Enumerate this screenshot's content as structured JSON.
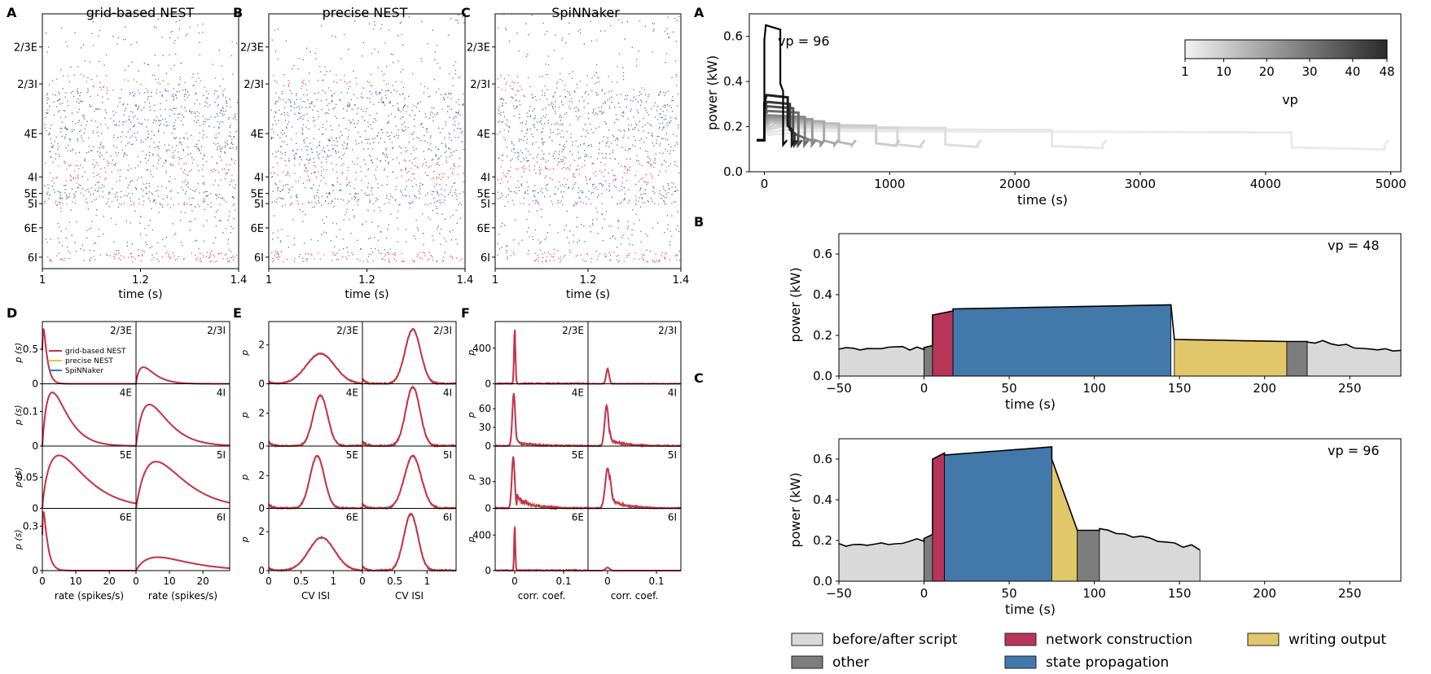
{
  "panel_letters": {
    "raster": [
      "A",
      "B",
      "C"
    ],
    "dist": [
      "D",
      "E",
      "F"
    ],
    "power": [
      "A",
      "B",
      "C"
    ]
  },
  "chart_data": [
    {
      "type": "scatter",
      "subtype": "raster",
      "titles": [
        "grid-based NEST",
        "precise NEST",
        "SpiNNaker"
      ],
      "xlabel": "time (s)",
      "xlim": [
        1.0,
        1.4
      ],
      "xticks": [
        1,
        1.2,
        1.4
      ],
      "xtick_labels": [
        "1",
        "1.2",
        "1.4"
      ],
      "populations": [
        {
          "label": "2/3E",
          "rows": [
            0.0,
            0.235
          ],
          "density": 0.09,
          "kind": "E"
        },
        {
          "label": "2/3I",
          "rows": [
            0.235,
            0.3
          ],
          "density": 0.26,
          "kind": "I"
        },
        {
          "label": "4E",
          "rows": [
            0.3,
            0.585
          ],
          "density": 0.55,
          "kind": "E"
        },
        {
          "label": "4I",
          "rows": [
            0.585,
            0.665
          ],
          "density": 0.48,
          "kind": "I"
        },
        {
          "label": "5E",
          "rows": [
            0.665,
            0.735
          ],
          "density": 0.62,
          "kind": "E"
        },
        {
          "label": "5I",
          "rows": [
            0.735,
            0.75
          ],
          "density": 0.85,
          "kind": "I"
        },
        {
          "label": "6E",
          "rows": [
            0.75,
            0.935
          ],
          "density": 0.18,
          "kind": "E"
        },
        {
          "label": "6I",
          "rows": [
            0.935,
            0.975
          ],
          "density": 0.7,
          "kind": "I"
        }
      ],
      "label_positions": [
        0.13,
        0.275,
        0.47,
        0.64,
        0.705,
        0.745,
        0.84,
        0.955
      ],
      "colors": {
        "E": "#4a4f9e",
        "I": "#d23a52"
      }
    },
    {
      "type": "line",
      "subtype": "small-multiples",
      "series_names": [
        "grid-based NEST",
        "precise NEST",
        "SpiNNaker"
      ],
      "series_colors": [
        "#c8324a",
        "#e8c53a",
        "#3a77b3"
      ],
      "columns": [
        {
          "letter": "D",
          "ylabel": "p (s)",
          "xlabel": "rate (spikes/s)",
          "xlim": [
            0,
            28
          ],
          "xticks": [
            0,
            10,
            20
          ],
          "xtick_labels": [
            "0",
            "10",
            "20"
          ],
          "curve": "rate",
          "rows": [
            {
              "ylim": [
                0,
                0.9
              ],
              "yticks": [
                0,
                0.5
              ],
              "ytick_labels": [
                "0",
                "0.5"
              ],
              "panels": [
                {
                  "label": "2/3E",
                  "peak": 0.8,
                  "mode": 0.3,
                  "scale": 0.9
                },
                {
                  "label": "2/3I",
                  "peak": 0.24,
                  "mode": 2.2,
                  "scale": 2.5
                }
              ]
            },
            {
              "ylim": [
                0,
                0.18
              ],
              "yticks": [
                0,
                0.1
              ],
              "ytick_labels": [
                "0",
                "0.1"
              ],
              "panels": [
                {
                  "label": "4E",
                  "peak": 0.155,
                  "mode": 3.0,
                  "scale": 3.2
                },
                {
                  "label": "4I",
                  "peak": 0.12,
                  "mode": 4.0,
                  "scale": 4.0
                }
              ]
            },
            {
              "ylim": [
                0,
                0.1
              ],
              "yticks": [
                0,
                0.05
              ],
              "ytick_labels": [
                "0",
                "0.05"
              ],
              "panels": [
                {
                  "label": "5E",
                  "peak": 0.085,
                  "mode": 5.0,
                  "scale": 6.0
                },
                {
                  "label": "5I",
                  "peak": 0.075,
                  "mode": 6.0,
                  "scale": 6.0
                }
              ]
            },
            {
              "ylim": [
                0,
                0.42
              ],
              "yticks": [
                0,
                0.3
              ],
              "ytick_labels": [
                "0",
                "0.3"
              ],
              "panels": [
                {
                  "label": "6E",
                  "peak": 0.4,
                  "mode": 0.3,
                  "scale": 1.0
                },
                {
                  "label": "6I",
                  "peak": 0.09,
                  "mode": 6.5,
                  "scale": 7.0
                }
              ]
            }
          ]
        },
        {
          "letter": "E",
          "ylabel": "p",
          "xlabel": "CV ISI",
          "xlim": [
            0,
            1.45
          ],
          "xticks": [
            0,
            0.5,
            1
          ],
          "xtick_labels": [
            "0",
            "0.5",
            "1"
          ],
          "curve": "cv",
          "rows": [
            {
              "ylim": [
                0,
                3.2
              ],
              "yticks": [
                0,
                2
              ],
              "ytick_labels": [
                "0",
                "2"
              ],
              "panels": [
                {
                  "label": "2/3E",
                  "peak": 1.55,
                  "mode": 0.8,
                  "scale": 0.22
                },
                {
                  "label": "2/3I",
                  "peak": 2.8,
                  "mode": 0.78,
                  "scale": 0.12
                }
              ]
            },
            {
              "ylim": [
                0,
                3.8
              ],
              "yticks": [
                0,
                2
              ],
              "ytick_labels": [
                "0",
                "2"
              ],
              "panels": [
                {
                  "label": "4E",
                  "peak": 3.1,
                  "mode": 0.8,
                  "scale": 0.11
                },
                {
                  "label": "4I",
                  "peak": 3.6,
                  "mode": 0.78,
                  "scale": 0.11
                }
              ]
            },
            {
              "ylim": [
                0,
                3.8
              ],
              "yticks": [
                0,
                2
              ],
              "ytick_labels": [
                "0",
                "2"
              ],
              "panels": [
                {
                  "label": "5E",
                  "peak": 3.2,
                  "mode": 0.75,
                  "scale": 0.11
                },
                {
                  "label": "5I",
                  "peak": 3.2,
                  "mode": 0.78,
                  "scale": 0.13
                }
              ]
            },
            {
              "ylim": [
                0,
                3.2
              ],
              "yticks": [
                0,
                2
              ],
              "ytick_labels": [
                "0",
                "2"
              ],
              "panels": [
                {
                  "label": "6E",
                  "peak": 1.7,
                  "mode": 0.82,
                  "scale": 0.2
                },
                {
                  "label": "6I",
                  "peak": 2.9,
                  "mode": 0.75,
                  "scale": 0.11
                }
              ]
            }
          ]
        },
        {
          "letter": "F",
          "ylabel": "p",
          "xlabel": "corr. coef.",
          "xlim": [
            -0.04,
            0.15
          ],
          "xticks": [
            0,
            0.1
          ],
          "xtick_labels": [
            "0",
            "0.1"
          ],
          "curve": "corr",
          "rows": [
            {
              "ylim": [
                0,
                700
              ],
              "yticks": [
                0,
                400
              ],
              "ytick_labels": [
                "0",
                "400"
              ],
              "panels": [
                {
                  "label": "2/3E",
                  "peak": 620,
                  "mode": 0.0,
                  "scale": 0.0015,
                  "tail": 0
                },
                {
                  "label": "2/3I",
                  "peak": 170,
                  "mode": 0.0,
                  "scale": 0.003,
                  "tail": 0
                }
              ]
            },
            {
              "ylim": [
                0,
                100
              ],
              "yticks": [
                0,
                30,
                60
              ],
              "ytick_labels": [
                "0",
                "30",
                "60"
              ],
              "panels": [
                {
                  "label": "4E",
                  "peak": 85,
                  "mode": -0.002,
                  "scale": 0.003,
                  "tail": 8
                },
                {
                  "label": "4I",
                  "peak": 65,
                  "mode": -0.002,
                  "scale": 0.004,
                  "tail": 12
                }
              ]
            },
            {
              "ylim": [
                0,
                70
              ],
              "yticks": [
                0,
                30
              ],
              "ytick_labels": [
                "0",
                "30"
              ],
              "panels": [
                {
                  "label": "5E",
                  "peak": 58,
                  "mode": -0.003,
                  "scale": 0.003,
                  "tail": 14
                },
                {
                  "label": "5I",
                  "peak": 45,
                  "mode": 0.0,
                  "scale": 0.005,
                  "tail": 12
                }
              ]
            },
            {
              "ylim": [
                0,
                700
              ],
              "yticks": [
                0,
                400
              ],
              "ytick_labels": [
                "0",
                "400"
              ],
              "panels": [
                {
                  "label": "6E",
                  "peak": 520,
                  "mode": 0.0,
                  "scale": 0.0012,
                  "tail": 0
                },
                {
                  "label": "6I",
                  "peak": 35,
                  "mode": 0.0,
                  "scale": 0.004,
                  "tail": 0
                }
              ]
            }
          ]
        }
      ]
    },
    {
      "type": "line",
      "subtype": "power-vs-vp",
      "ylabel": "power (kW)",
      "xlabel": "time (s)",
      "xlim": [
        -120,
        5080
      ],
      "ylim": [
        0,
        0.7
      ],
      "xticks": [
        0,
        1000,
        2000,
        3000,
        4000,
        5000
      ],
      "xtick_labels": [
        "0",
        "1000",
        "2000",
        "3000",
        "4000",
        "5000"
      ],
      "yticks": [
        0,
        0.2,
        0.4,
        0.6
      ],
      "ytick_labels": [
        "0.0",
        "0.2",
        "0.4",
        "0.6"
      ],
      "annotation": "vp = 96",
      "colorbar": {
        "label": "vp",
        "ticks": [
          1,
          10,
          20,
          30,
          40,
          48
        ],
        "tick_labels": [
          "1",
          "10",
          "20",
          "30",
          "40",
          "48"
        ]
      },
      "runs": [
        {
          "vp": 1,
          "duration": 4950,
          "level": 0.18
        },
        {
          "vp": 2,
          "duration": 2700,
          "level": 0.19
        },
        {
          "vp": 4,
          "duration": 1700,
          "level": 0.2
        },
        {
          "vp": 6,
          "duration": 1250,
          "level": 0.2
        },
        {
          "vp": 8,
          "duration": 1050,
          "level": 0.21
        },
        {
          "vp": 12,
          "duration": 700,
          "level": 0.22
        },
        {
          "vp": 16,
          "duration": 560,
          "level": 0.23
        },
        {
          "vp": 20,
          "duration": 450,
          "level": 0.24
        },
        {
          "vp": 24,
          "duration": 380,
          "level": 0.25
        },
        {
          "vp": 30,
          "duration": 320,
          "level": 0.27
        },
        {
          "vp": 36,
          "duration": 270,
          "level": 0.29
        },
        {
          "vp": 42,
          "duration": 240,
          "level": 0.31
        },
        {
          "vp": 48,
          "duration": 220,
          "level": 0.34
        },
        {
          "vp": 96,
          "duration": 150,
          "level": 0.65
        }
      ]
    },
    {
      "type": "area",
      "subtype": "power-phases",
      "annotation": "vp = 48",
      "ylabel": "power (kW)",
      "xlabel": "time (s)",
      "xlim": [
        -50,
        280
      ],
      "ylim": [
        0,
        0.7
      ],
      "xticks": [
        -50,
        0,
        50,
        100,
        150,
        200,
        250
      ],
      "xtick_labels": [
        "−50",
        "0",
        "50",
        "100",
        "150",
        "200",
        "250"
      ],
      "yticks": [
        0,
        0.2,
        0.4,
        0.6
      ],
      "ytick_labels": [
        "0.0",
        "0.2",
        "0.4",
        "0.6"
      ],
      "end": 280,
      "phases": [
        {
          "phase": "before",
          "start": -50,
          "end": 0,
          "y0": 0.14,
          "y1": 0.14
        },
        {
          "phase": "other",
          "start": 0,
          "end": 5,
          "y0": 0.14,
          "y1": 0.15
        },
        {
          "phase": "construction",
          "start": 5,
          "end": 17,
          "y0": 0.3,
          "y1": 0.32
        },
        {
          "phase": "propagation",
          "start": 17,
          "end": 145,
          "y0": 0.33,
          "y1": 0.35
        },
        {
          "phase": "output",
          "start": 147,
          "end": 213,
          "y0": 0.18,
          "y1": 0.17
        },
        {
          "phase": "other",
          "start": 213,
          "end": 225,
          "y0": 0.17,
          "y1": 0.17
        },
        {
          "phase": "after",
          "start": 225,
          "end": 280,
          "y0": 0.17,
          "y1": 0.13
        }
      ]
    },
    {
      "type": "area",
      "subtype": "power-phases",
      "annotation": "vp = 96",
      "ylabel": "power (kW)",
      "xlabel": "time (s)",
      "xlim": [
        -50,
        280
      ],
      "ylim": [
        0,
        0.7
      ],
      "xticks": [
        -50,
        0,
        50,
        100,
        150,
        200,
        250
      ],
      "xtick_labels": [
        "−50",
        "0",
        "50",
        "100",
        "150",
        "200",
        "250"
      ],
      "yticks": [
        0,
        0.2,
        0.4,
        0.6
      ],
      "ytick_labels": [
        "0.0",
        "0.2",
        "0.4",
        "0.6"
      ],
      "end": 162,
      "phases": [
        {
          "phase": "before",
          "start": -50,
          "end": 0,
          "y0": 0.18,
          "y1": 0.2
        },
        {
          "phase": "other",
          "start": 0,
          "end": 5,
          "y0": 0.21,
          "y1": 0.23
        },
        {
          "phase": "construction",
          "start": 5,
          "end": 12,
          "y0": 0.6,
          "y1": 0.63
        },
        {
          "phase": "propagation",
          "start": 12,
          "end": 75,
          "y0": 0.62,
          "y1": 0.66
        },
        {
          "phase": "output",
          "start": 75,
          "end": 90,
          "y0": 0.6,
          "y1": 0.25
        },
        {
          "phase": "other",
          "start": 90,
          "end": 103,
          "y0": 0.25,
          "y1": 0.25
        },
        {
          "phase": "after",
          "start": 103,
          "end": 162,
          "y0": 0.26,
          "y1": 0.16
        }
      ]
    }
  ],
  "legend": {
    "items": [
      {
        "key": "before",
        "label": "before/after script",
        "color": "#d9d9d9"
      },
      {
        "key": "construction",
        "label": "network construction",
        "color": "#b8355a"
      },
      {
        "key": "output",
        "label": "writing output",
        "color": "#e1c76a"
      },
      {
        "key": "other",
        "label": "other",
        "color": "#7d7d7d"
      },
      {
        "key": "propagation",
        "label": "state propagation",
        "color": "#4378ab"
      }
    ]
  }
}
